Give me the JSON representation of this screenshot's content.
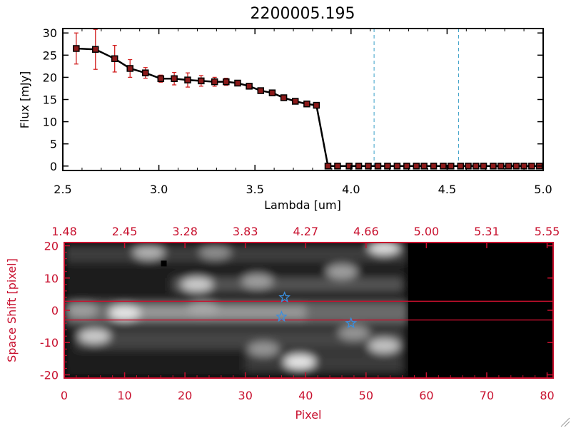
{
  "chart_data": [
    {
      "type": "line",
      "title": "2200005.195",
      "xlabel": "Lambda [um]",
      "ylabel": "Flux [mJy]",
      "xlim": [
        2.5,
        5.0
      ],
      "ylim": [
        -1,
        31
      ],
      "xticks": [
        "2.5",
        "3.0",
        "3.5",
        "4.0",
        "4.5",
        "5.0"
      ],
      "yticks": [
        "0",
        "5",
        "10",
        "15",
        "20",
        "25",
        "30"
      ],
      "vertical_dashed_lines_x": [
        4.12,
        4.56
      ],
      "dashed_zero_line_from_x": 4.56,
      "series": [
        {
          "x": [
            2.57,
            2.67,
            2.77,
            2.85,
            2.93,
            3.01,
            3.08,
            3.15,
            3.22,
            3.29,
            3.35,
            3.41,
            3.47,
            3.53,
            3.59,
            3.65,
            3.71,
            3.77,
            3.82,
            3.88,
            3.93,
            3.99,
            4.04,
            4.09,
            4.14,
            4.19,
            4.24,
            4.29,
            4.34,
            4.38,
            4.43,
            4.48,
            4.52,
            4.57,
            4.61,
            4.65,
            4.69,
            4.74,
            4.78,
            4.82,
            4.86,
            4.9,
            4.94,
            4.98
          ],
          "y": [
            26.5,
            26.3,
            24.2,
            22.0,
            21.0,
            19.7,
            19.7,
            19.4,
            19.2,
            19.0,
            19.0,
            18.7,
            18.0,
            17.0,
            16.5,
            15.4,
            14.6,
            14.0,
            13.7,
            0,
            0,
            0,
            0,
            0,
            0,
            0,
            0,
            0,
            0,
            0,
            0,
            0,
            0,
            0,
            0,
            0,
            0,
            0,
            0,
            0,
            0,
            0,
            0,
            0
          ],
          "yerr": [
            3.5,
            4.5,
            3.0,
            2.0,
            1.2,
            0.8,
            1.4,
            1.6,
            1.2,
            1.0,
            0.8,
            0.6,
            0.6,
            0.6,
            0.5,
            0.5,
            0.5,
            0.5,
            0.5,
            0,
            0,
            0,
            0,
            0,
            0,
            0,
            0,
            0,
            0,
            0,
            0,
            0,
            0,
            0,
            0,
            0,
            0,
            0,
            0,
            0,
            0,
            0,
            0,
            0
          ],
          "line_color": "#000000",
          "marker_color": "#8b1a1a",
          "errorbar_color": "#d22020"
        }
      ]
    },
    {
      "type": "heatmap",
      "xlabel": "Pixel",
      "ylabel": "Space Shift [pixel]",
      "xlim": [
        0,
        81
      ],
      "ylim": [
        -21,
        21
      ],
      "xticks": [
        "0",
        "10",
        "20",
        "30",
        "40",
        "50",
        "60",
        "70",
        "80"
      ],
      "yticks": [
        "-20",
        "-10",
        "0",
        "10",
        "20"
      ],
      "top_axis_labels": [
        "1.48",
        "2.45",
        "3.28",
        "3.83",
        "4.27",
        "4.66",
        "5.00",
        "5.31",
        "5.55"
      ],
      "colormap": "grayscale",
      "data_extent_x": [
        0,
        57
      ],
      "aperture_lines_y": [
        2.8,
        -3.0
      ],
      "star_markers": [
        {
          "x": 36.5,
          "y": 4.0
        },
        {
          "x": 36.0,
          "y": -2.0
        },
        {
          "x": 47.5,
          "y": -4.0
        }
      ],
      "bright_features": [
        {
          "x": 10,
          "y": -0.8,
          "brightness": 0.95
        },
        {
          "x": 3,
          "y": 0,
          "brightness": 0.55
        },
        {
          "x": 23,
          "y": 0.5,
          "brightness": 0.6
        },
        {
          "x": 5,
          "y": -8,
          "brightness": 0.8
        },
        {
          "x": 14,
          "y": 18,
          "brightness": 0.65
        },
        {
          "x": 25,
          "y": 18,
          "brightness": 0.45
        },
        {
          "x": 22,
          "y": 8,
          "brightness": 0.8
        },
        {
          "x": 32,
          "y": 9,
          "brightness": 0.55
        },
        {
          "x": 53,
          "y": 19.5,
          "brightness": 0.9
        },
        {
          "x": 46,
          "y": 12,
          "brightness": 0.55
        },
        {
          "x": 39,
          "y": -16,
          "brightness": 0.95
        },
        {
          "x": 53,
          "y": -11,
          "brightness": 0.75
        },
        {
          "x": 48,
          "y": -7,
          "brightness": 0.5
        },
        {
          "x": 33,
          "y": -12,
          "brightness": 0.5
        }
      ],
      "dark_pixel": {
        "x": 16.5,
        "y": 14.5
      }
    }
  ]
}
